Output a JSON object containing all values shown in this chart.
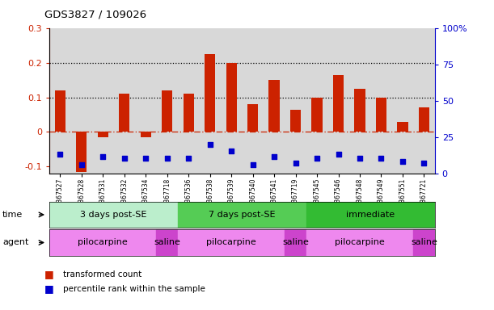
{
  "title": "GDS3827 / 109026",
  "samples": [
    "GSM367527",
    "GSM367528",
    "GSM367531",
    "GSM367532",
    "GSM367534",
    "GSM367718",
    "GSM367536",
    "GSM367538",
    "GSM367539",
    "GSM367540",
    "GSM367541",
    "GSM367719",
    "GSM367545",
    "GSM367546",
    "GSM367548",
    "GSM367549",
    "GSM367551",
    "GSM367721"
  ],
  "red_values": [
    0.12,
    -0.115,
    -0.015,
    0.11,
    -0.015,
    0.12,
    0.11,
    0.225,
    0.2,
    0.08,
    0.15,
    0.065,
    0.1,
    0.165,
    0.125,
    0.1,
    0.03,
    0.07
  ],
  "blue_values": [
    -0.065,
    -0.095,
    -0.07,
    -0.075,
    -0.075,
    -0.075,
    -0.075,
    -0.035,
    -0.055,
    -0.095,
    -0.07,
    -0.09,
    -0.075,
    -0.065,
    -0.075,
    -0.075,
    -0.085,
    -0.09
  ],
  "ylim_left": [
    -0.12,
    0.3
  ],
  "ylim_right": [
    0,
    100
  ],
  "yticks_left": [
    -0.1,
    0.0,
    0.1,
    0.2,
    0.3
  ],
  "yticks_right": [
    0,
    25,
    50,
    75,
    100
  ],
  "ytick_labels_left": [
    "-0.1",
    "0",
    "0.1",
    "0.2",
    "0.3"
  ],
  "ytick_labels_right": [
    "0",
    "25",
    "50",
    "75",
    "100%"
  ],
  "hlines": [
    0.1,
    0.2
  ],
  "red_color": "#cc2200",
  "blue_color": "#0000cc",
  "time_groups": [
    {
      "label": "3 days post-SE",
      "start": 0,
      "end": 6,
      "color": "#bbeecc"
    },
    {
      "label": "7 days post-SE",
      "start": 6,
      "end": 12,
      "color": "#55cc55"
    },
    {
      "label": "immediate",
      "start": 12,
      "end": 18,
      "color": "#33bb33"
    }
  ],
  "agent_groups": [
    {
      "label": "pilocarpine",
      "start": 0,
      "end": 5,
      "color": "#ee88ee"
    },
    {
      "label": "saline",
      "start": 5,
      "end": 6,
      "color": "#cc44cc"
    },
    {
      "label": "pilocarpine",
      "start": 6,
      "end": 11,
      "color": "#ee88ee"
    },
    {
      "label": "saline",
      "start": 11,
      "end": 12,
      "color": "#cc44cc"
    },
    {
      "label": "pilocarpine",
      "start": 12,
      "end": 17,
      "color": "#ee88ee"
    },
    {
      "label": "saline",
      "start": 17,
      "end": 18,
      "color": "#cc44cc"
    }
  ],
  "legend_items": [
    {
      "label": "transformed count",
      "color": "#cc2200"
    },
    {
      "label": "percentile rank within the sample",
      "color": "#0000cc"
    }
  ],
  "bar_width": 0.5,
  "col_bg_color": "#d8d8d8",
  "bg_color": "#ffffff"
}
